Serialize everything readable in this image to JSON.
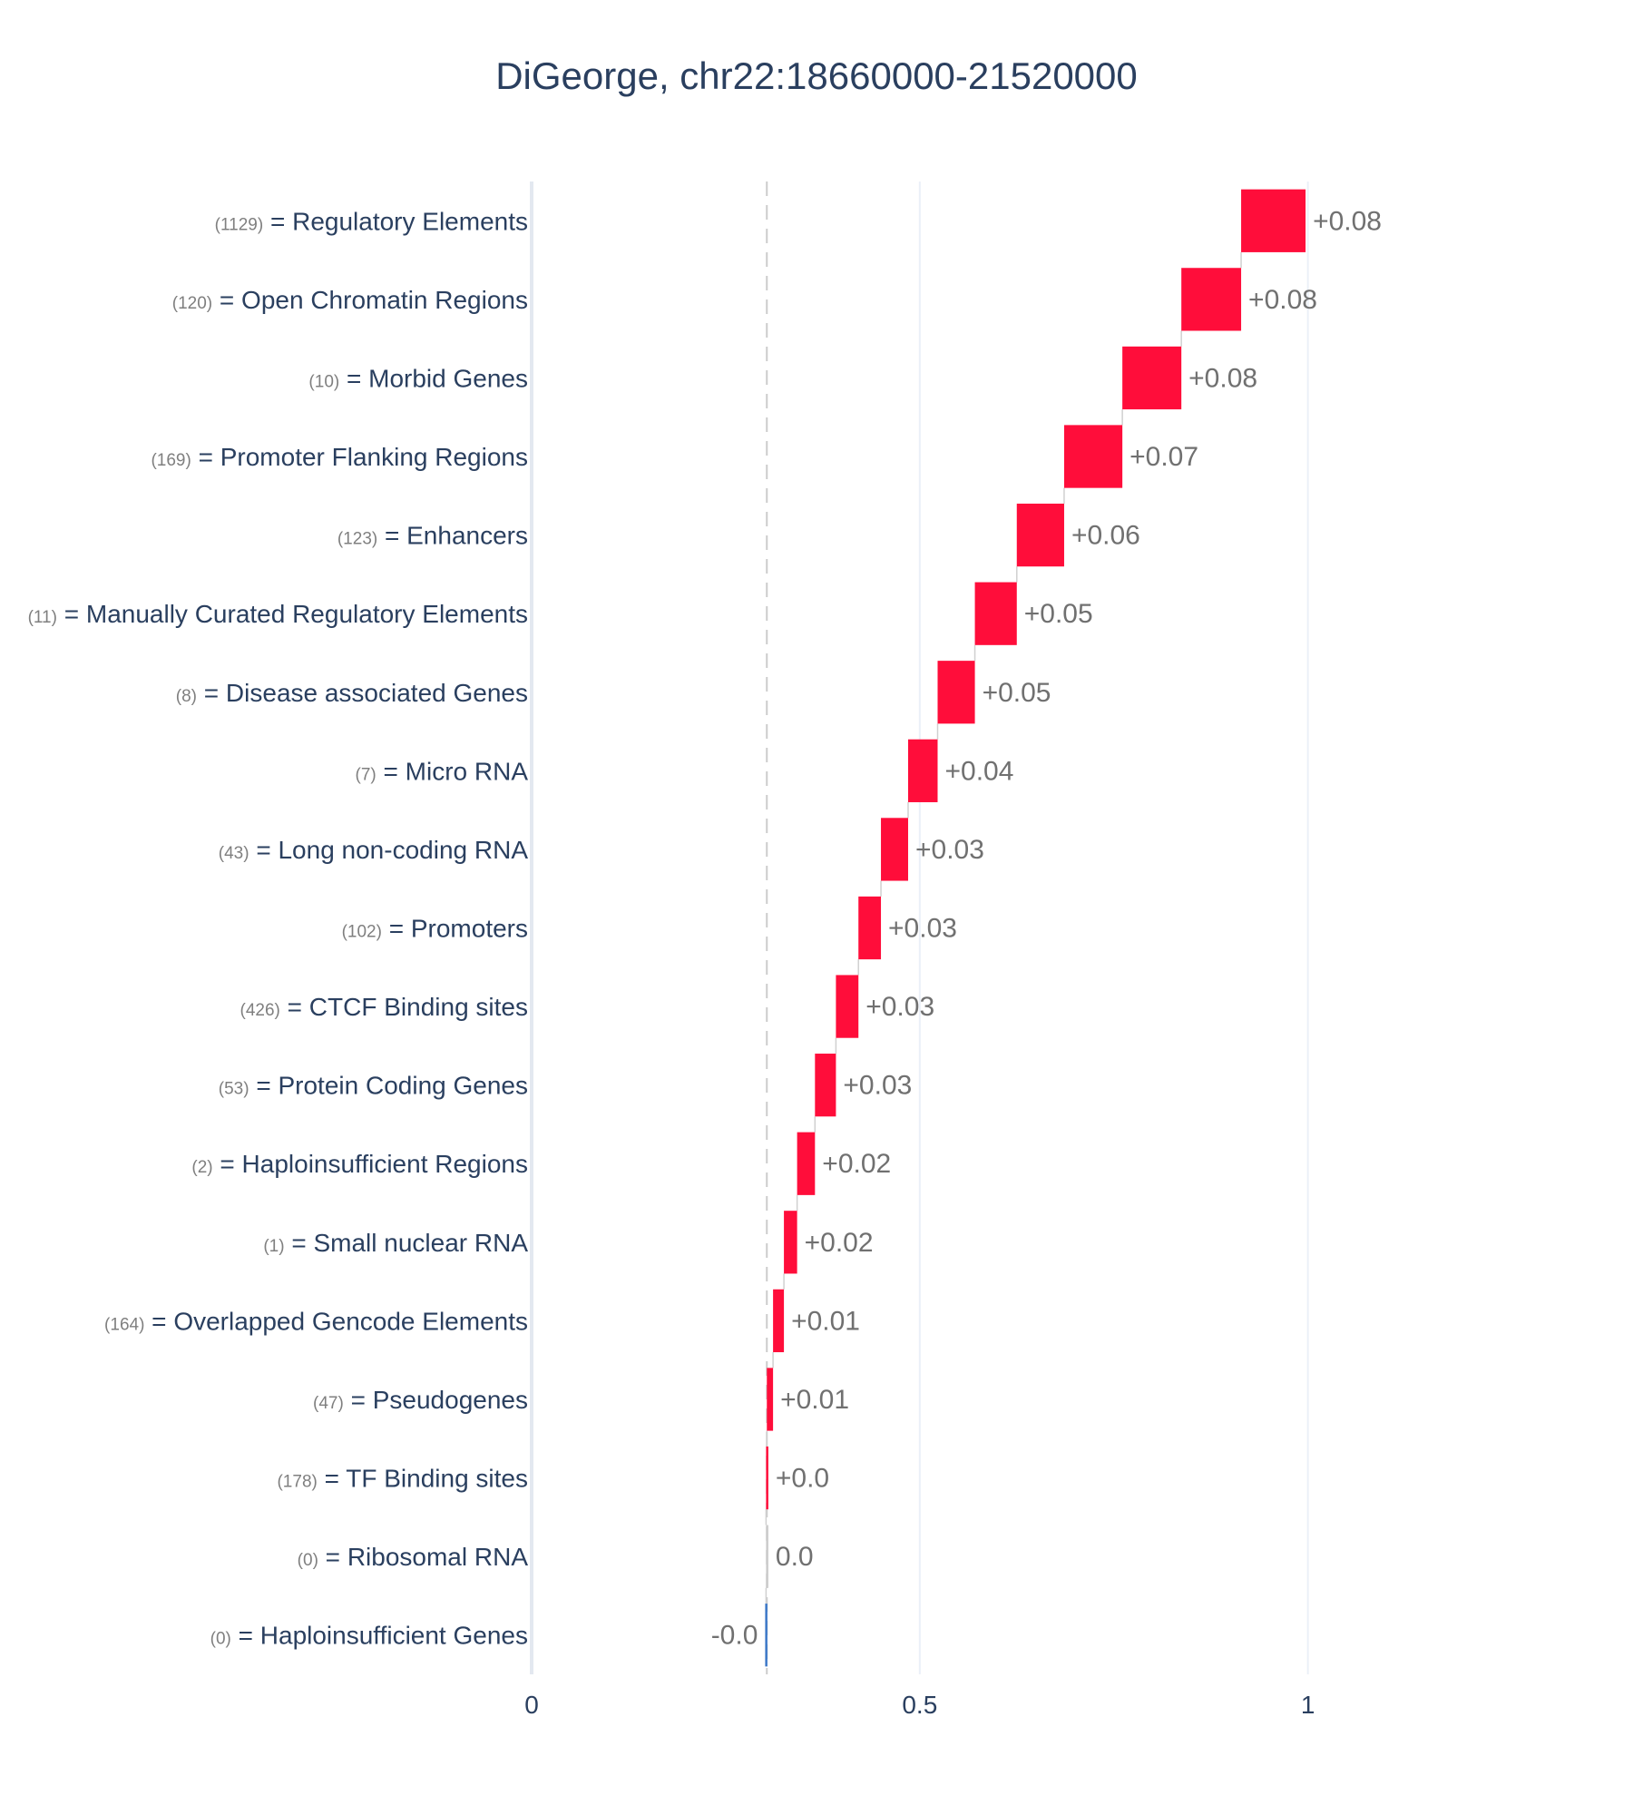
{
  "chart_data": {
    "type": "waterfall",
    "title": "DiGeorge, chr22:18660000-21520000",
    "orientation": "horizontal",
    "base_value": 0.303,
    "xlim": [
      0,
      1.33
    ],
    "xticks": [
      {
        "value": 0,
        "label": "0"
      },
      {
        "value": 0.5,
        "label": "0.5"
      },
      {
        "value": 1,
        "label": "1"
      }
    ],
    "grid": true,
    "legend": "none",
    "colors": {
      "positive": "#ff0d3a",
      "negative": "#3c78c8",
      "zero": "#cccccc",
      "baseline": "#cccccc",
      "grid": "#ebf0f8"
    },
    "features": [
      {
        "count": "(1129)",
        "name": "= Regulatory Elements",
        "start": 0.914,
        "end": 0.997,
        "label": "+0.08"
      },
      {
        "count": "(120)",
        "name": "= Open Chromatin Regions",
        "start": 0.837,
        "end": 0.914,
        "label": "+0.08"
      },
      {
        "count": "(10)",
        "name": "= Morbid Genes",
        "start": 0.761,
        "end": 0.837,
        "label": "+0.08"
      },
      {
        "count": "(169)",
        "name": "= Promoter Flanking Regions",
        "start": 0.686,
        "end": 0.761,
        "label": "+0.07"
      },
      {
        "count": "(123)",
        "name": "= Enhancers",
        "start": 0.625,
        "end": 0.686,
        "label": "+0.06"
      },
      {
        "count": "(11)",
        "name": "= Manually Curated Regulatory Elements",
        "start": 0.571,
        "end": 0.625,
        "label": "+0.05"
      },
      {
        "count": "(8)",
        "name": "= Disease associated Genes",
        "start": 0.523,
        "end": 0.571,
        "label": "+0.05"
      },
      {
        "count": "(7)",
        "name": "= Micro RNA",
        "start": 0.485,
        "end": 0.523,
        "label": "+0.04"
      },
      {
        "count": "(43)",
        "name": "= Long non-coding RNA",
        "start": 0.45,
        "end": 0.485,
        "label": "+0.03"
      },
      {
        "count": "(102)",
        "name": "= Promoters",
        "start": 0.421,
        "end": 0.45,
        "label": "+0.03"
      },
      {
        "count": "(426)",
        "name": "= CTCF Binding sites",
        "start": 0.392,
        "end": 0.421,
        "label": "+0.03"
      },
      {
        "count": "(53)",
        "name": "= Protein Coding Genes",
        "start": 0.365,
        "end": 0.392,
        "label": "+0.03"
      },
      {
        "count": "(2)",
        "name": "= Haploinsufficient Regions",
        "start": 0.342,
        "end": 0.365,
        "label": "+0.02"
      },
      {
        "count": "(1)",
        "name": "= Small nuclear RNA",
        "start": 0.325,
        "end": 0.342,
        "label": "+0.02"
      },
      {
        "count": "(164)",
        "name": "= Overlapped Gencode Elements",
        "start": 0.311,
        "end": 0.325,
        "label": "+0.01"
      },
      {
        "count": "(47)",
        "name": "= Pseudogenes",
        "start": 0.303,
        "end": 0.311,
        "label": "+0.01"
      },
      {
        "count": "(178)",
        "name": "= TF Binding sites",
        "start": 0.302,
        "end": 0.303,
        "label": "+0.0"
      },
      {
        "count": "(0)",
        "name": "= Ribosomal RNA",
        "start": 0.302,
        "end": 0.302,
        "label": "0.0"
      },
      {
        "count": "(0)",
        "name": "= Haploinsufficient Genes",
        "start": 0.302,
        "end": 0.302,
        "label": "-0.0"
      }
    ]
  }
}
